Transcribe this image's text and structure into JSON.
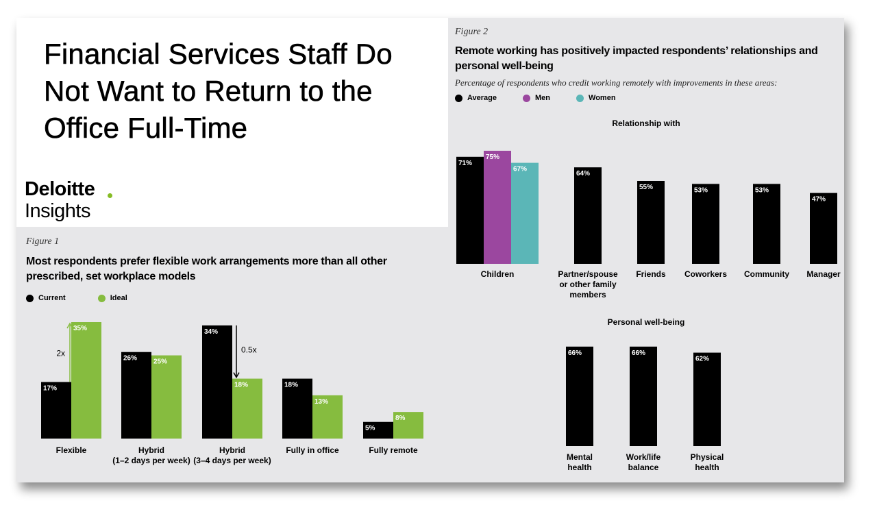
{
  "title": "Financial Services Staff Do Not Want to Return to the Office Full-Time",
  "brand": {
    "name": "Deloitte",
    "sub": "Insights"
  },
  "colors": {
    "black": "#000000",
    "green": "#86bc3f",
    "purple": "#9b479f",
    "teal": "#5bb6b7",
    "brand_dot": "#86bc25"
  },
  "figure1": {
    "label": "Figure 1",
    "title_line1": "Most respondents prefer flexible work arrangements more than all other",
    "title_line2": "prescribed, set workplace models",
    "legend": [
      {
        "name": "Current",
        "color": "#000000"
      },
      {
        "name": "Ideal",
        "color": "#86bc3f"
      }
    ]
  },
  "figure2": {
    "label": "Figure 2",
    "title_line1": "Remote working has positively impacted respondents’ relationships and",
    "title_line2": "personal well-being",
    "subtitle": "Percentage of respondents who credit working remotely with improvements in these areas:",
    "legend": [
      {
        "name": "Average",
        "color": "#000000"
      },
      {
        "name": "Men",
        "color": "#9b479f"
      },
      {
        "name": "Women",
        "color": "#5bb6b7"
      }
    ],
    "group1_title": "Relationship with",
    "group2_title": "Personal well-being"
  },
  "chart_data": [
    {
      "type": "bar",
      "title": "Most respondents prefer flexible work arrangements more than all other prescribed, set workplace models",
      "categories": [
        [
          "Flexible"
        ],
        [
          "Hybrid",
          "(1–2 days per week)"
        ],
        [
          "Hybrid",
          "(3–4 days per week)"
        ],
        [
          "Fully in office"
        ],
        [
          "Fully remote"
        ]
      ],
      "series": [
        {
          "name": "Current",
          "color": "#000000",
          "values": [
            17,
            26,
            34,
            18,
            5
          ],
          "labels": [
            "17%",
            "26%",
            "34%",
            "18%",
            "5%"
          ]
        },
        {
          "name": "Ideal",
          "color": "#86bc3f",
          "values": [
            35,
            25,
            18,
            13,
            8
          ],
          "labels": [
            "35%",
            "25%",
            "18%",
            "13%",
            "8%"
          ]
        }
      ],
      "annotations": [
        {
          "text": "2x",
          "category_index": 0,
          "direction": "up"
        },
        {
          "text": "0.5x",
          "category_index": 2,
          "direction": "down"
        }
      ],
      "ylim": [
        0,
        35
      ],
      "grid": false,
      "legend": "top-left"
    },
    {
      "type": "bar",
      "title": "Relationship with",
      "categories": [
        [
          "Children"
        ],
        [
          "Partner/spouse",
          "or other family",
          "members"
        ],
        [
          "Friends"
        ],
        [
          "Coworkers"
        ],
        [
          "Community"
        ],
        [
          "Manager"
        ]
      ],
      "series": [
        {
          "name": "Average",
          "color": "#000000",
          "values": [
            71,
            64,
            55,
            53,
            53,
            47
          ],
          "labels": [
            "71%",
            "64%",
            "55%",
            "53%",
            "53%",
            "47%"
          ]
        },
        {
          "name": "Men",
          "color": "#9b479f",
          "values": [
            75,
            null,
            null,
            null,
            null,
            null
          ],
          "labels": [
            "75%",
            "",
            "",
            "",
            "",
            ""
          ]
        },
        {
          "name": "Women",
          "color": "#5bb6b7",
          "values": [
            67,
            null,
            null,
            null,
            null,
            null
          ],
          "labels": [
            "67%",
            "",
            "",
            "",
            "",
            ""
          ]
        }
      ],
      "ylim": [
        0,
        75
      ],
      "grid": false,
      "legend": "top-left"
    },
    {
      "type": "bar",
      "title": "Personal well-being",
      "categories": [
        [
          "Mental",
          "health"
        ],
        [
          "Work/life",
          "balance"
        ],
        [
          "Physical",
          "health"
        ]
      ],
      "series": [
        {
          "name": "Average",
          "color": "#000000",
          "values": [
            66,
            66,
            62
          ],
          "labels": [
            "66%",
            "66%",
            "62%"
          ]
        }
      ],
      "ylim": [
        0,
        66
      ],
      "grid": false
    }
  ]
}
